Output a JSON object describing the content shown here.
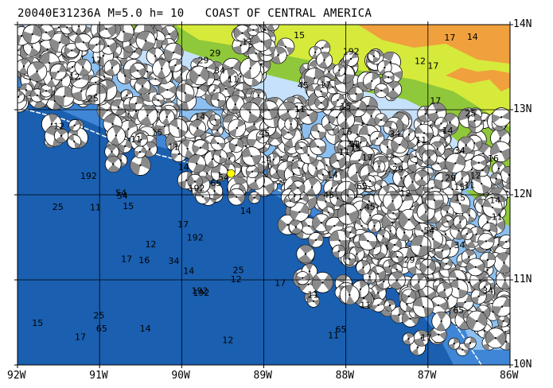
{
  "header": {
    "event": "20040E31236A",
    "magnitude": "M=5.0",
    "depth": "h= 10",
    "region": "COAST OF CENTRAL AMERICA"
  },
  "map": {
    "lon_ticks": [
      "92W",
      "91W",
      "90W",
      "89W",
      "88W",
      "87W",
      "86W"
    ],
    "lat_ticks": [
      "14N",
      "13N",
      "12N",
      "11N",
      "10N"
    ],
    "lon_range": [
      -92,
      -86
    ],
    "lat_range": [
      10,
      14
    ],
    "colors": {
      "deep_ocean": "#1a5fb0",
      "mid_ocean": "#3f86d6",
      "shelf": "#8cc0f0",
      "shallow": "#c6e1fb",
      "lowland": "#8fc83a",
      "upland": "#d6ea3c",
      "highland": "#f0a03c",
      "epicenter": "#ffff00"
    },
    "beachball_numbers": [
      "15",
      "17",
      "12",
      "14",
      "25",
      "29",
      "45",
      "192",
      "65",
      "54",
      "34",
      "16",
      "11"
    ],
    "epicenter": {
      "lon": -89.4,
      "lat": 12.25
    }
  }
}
